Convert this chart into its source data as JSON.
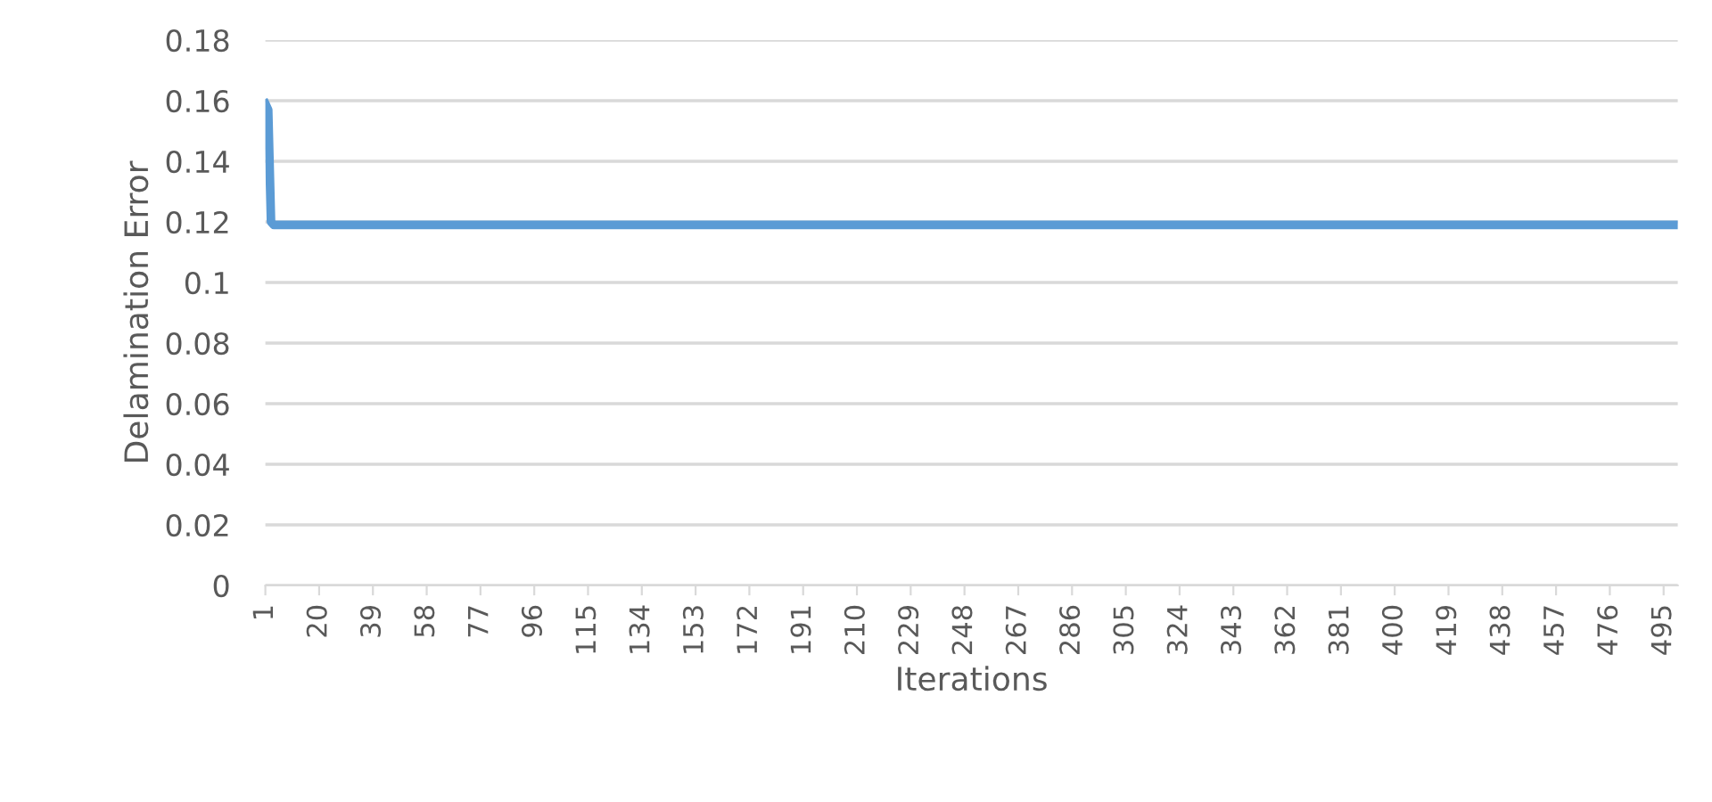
{
  "chart_data": {
    "type": "line",
    "xlabel": "Iterations",
    "ylabel": "Delamination Error",
    "x": [
      1,
      2,
      3,
      4,
      500
    ],
    "series": [
      {
        "color": "#5b9bd5",
        "values": [
          0.159,
          0.157,
          0.12,
          0.119,
          0.119
        ]
      }
    ],
    "xlim": [
      1,
      500
    ],
    "xticks": [
      1,
      20,
      39,
      58,
      77,
      96,
      115,
      134,
      153,
      172,
      191,
      210,
      229,
      248,
      267,
      286,
      305,
      324,
      343,
      362,
      381,
      400,
      419,
      438,
      457,
      476,
      495
    ],
    "ylim": [
      0,
      0.18
    ],
    "yticks": [
      {
        "value": 0,
        "label": "0"
      },
      0.02,
      0.04,
      0.06,
      0.08,
      {
        "value": 0.1,
        "label": "0.1"
      },
      0.12,
      0.14,
      0.16,
      0.18
    ],
    "grid": "y",
    "legend": false,
    "marker": "none",
    "line_style": "solid"
  }
}
